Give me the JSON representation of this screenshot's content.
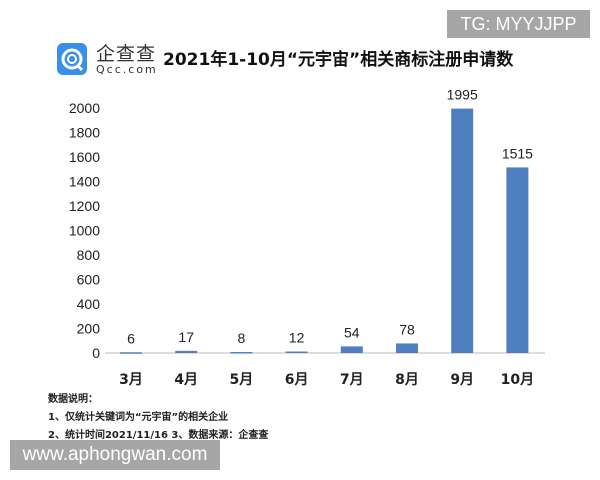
{
  "watermarks": {
    "tg": "TG: MYYJJPP",
    "url": "www.aphongwan.com"
  },
  "logo": {
    "cn": "企查查",
    "en": "Qcc.com"
  },
  "notes": [
    "数据说明：",
    "1、仅统计关键词为“元宇宙”的相关企业",
    "2、统计时间2021/11/16  3、数据来源：企查查"
  ],
  "chart_data": {
    "type": "bar",
    "title": "2021年1-10月“元宇宙”相关商标注册申请数",
    "categories": [
      "3月",
      "4月",
      "5月",
      "6月",
      "7月",
      "8月",
      "9月",
      "10月"
    ],
    "values": [
      6,
      17,
      8,
      12,
      54,
      78,
      1995,
      1515
    ],
    "ylim": [
      0,
      2000
    ],
    "yticks": [
      0,
      200,
      400,
      600,
      800,
      1000,
      1200,
      1400,
      1600,
      1800,
      2000
    ],
    "grid": false,
    "bar_color": "#4f7fc0"
  }
}
